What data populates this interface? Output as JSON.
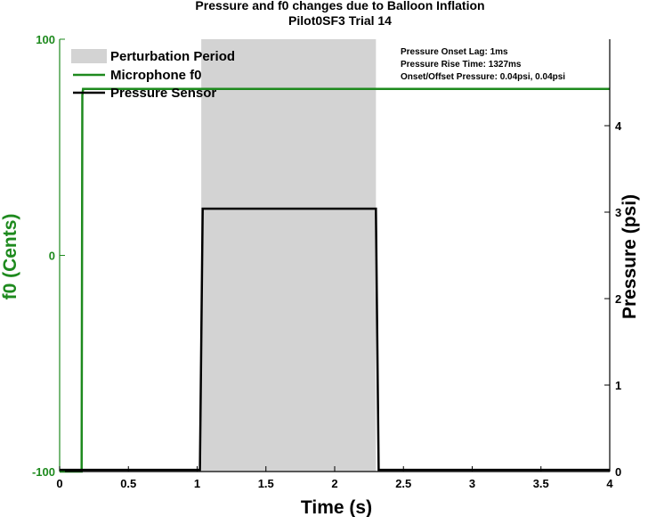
{
  "chart_data": {
    "type": "line",
    "title": "Pressure and f0 changes due to Balloon Inflation",
    "subtitle": "Pilot0SF3 Trial 14",
    "xlabel": "Time (s)",
    "ylabel_left": "f0 (Cents)",
    "ylabel_right": "Pressure (psi)",
    "xlim": [
      0,
      4
    ],
    "ylim_left": [
      -100,
      100
    ],
    "ylim_right": [
      0,
      5
    ],
    "x_ticks": [
      "0",
      "0.5",
      "1",
      "1.5",
      "2",
      "2.5",
      "3",
      "3.5",
      "4"
    ],
    "y_left_ticks": [
      "-100",
      "0",
      "100"
    ],
    "y_right_ticks": [
      "0",
      "1",
      "2",
      "3",
      "4"
    ],
    "grid": false,
    "legend_position": "top-left",
    "colors": {
      "f0": "#1e8a1e",
      "pressure": "#000000",
      "perturbation": "#d3d3d3",
      "axis_left": "#1e8a1e"
    },
    "perturbation_period": {
      "name": "Perturbation Period",
      "x_start": 1.03,
      "x_end": 2.3
    },
    "series": [
      {
        "name": "Microphone f0",
        "axis": "left",
        "x": [
          0,
          0.16,
          0.165,
          0.17,
          4
        ],
        "y": [
          -100,
          -100,
          74,
          77,
          77
        ]
      },
      {
        "name": "Pressure Sensor",
        "axis": "right",
        "x": [
          0,
          1.02,
          1.04,
          2.3,
          2.32,
          4
        ],
        "y": [
          0.02,
          0.02,
          3.04,
          3.04,
          0.02,
          0.02
        ]
      }
    ],
    "annotations": [
      "Pressure Onset Lag: 1ms",
      "Pressure Rise Time: 1327ms",
      "Onset/Offset Pressure: 0.04psi, 0.04psi"
    ]
  }
}
